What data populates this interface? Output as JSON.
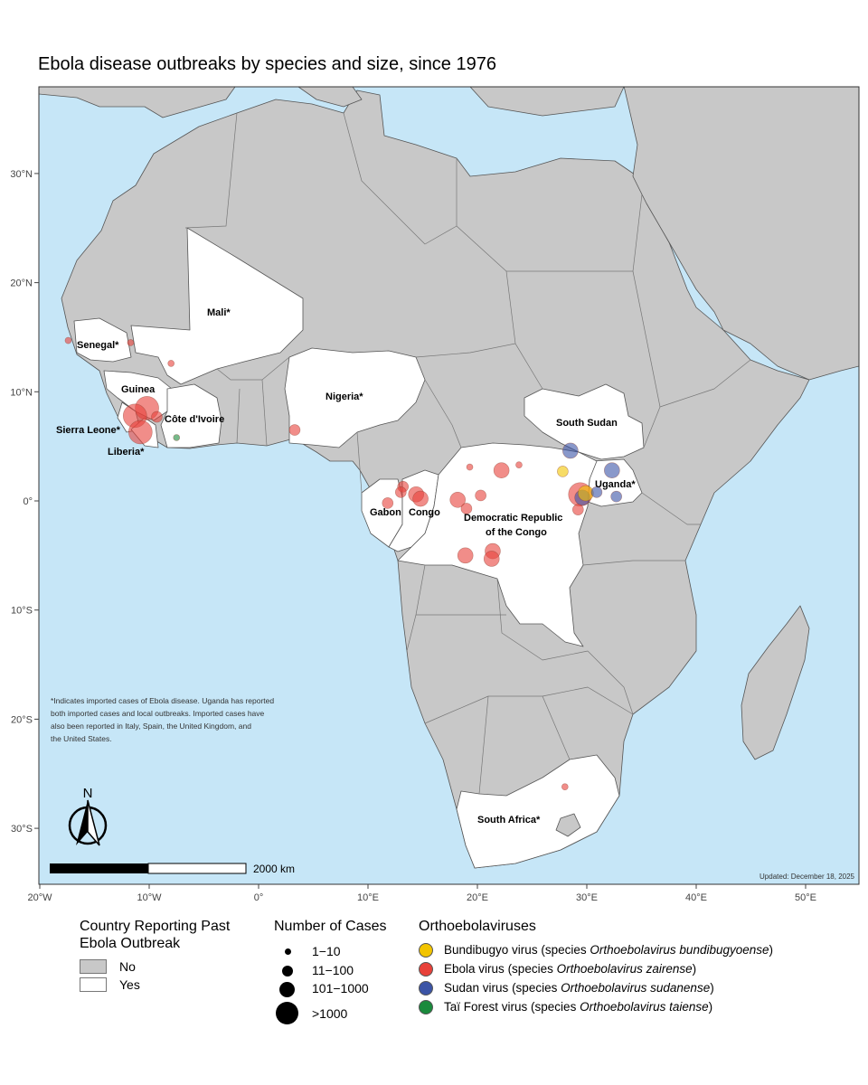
{
  "title": "Ebola disease outbreaks by species and size, since 1976",
  "colors": {
    "ocean": "#c6e6f7",
    "land_no": "#c8c8c8",
    "land_yes": "#ffffff",
    "border": "#555555",
    "bundibugyo": "#f2c400",
    "ebola": "#e8413a",
    "sudan": "#3b54a6",
    "tai_forest": "#1a8a3c"
  },
  "axes": {
    "x_ticks": [
      "20°W",
      "10°W",
      "0°",
      "10°E",
      "20°E",
      "30°E",
      "40°E",
      "50°E"
    ],
    "y_ticks": [
      "30°N",
      "20°N",
      "10°N",
      "0°",
      "10°S",
      "20°S",
      "30°S"
    ]
  },
  "country_labels": [
    {
      "text": "Mali*"
    },
    {
      "text": "Senegal*"
    },
    {
      "text": "Guinea"
    },
    {
      "text": "Sierra Leone*"
    },
    {
      "text": "Côte d'Ivoire"
    },
    {
      "text": "Liberia*"
    },
    {
      "text": "Nigeria*"
    },
    {
      "text": "South Sudan"
    },
    {
      "text": "Uganda*"
    },
    {
      "text": "Gabon"
    },
    {
      "text": "Congo"
    },
    {
      "text": "Democratic Republic"
    },
    {
      "text": "of the Congo"
    },
    {
      "text": "South Africa*"
    }
  ],
  "footnote": [
    "*Indicates imported cases of Ebola disease. Uganda has reported",
    "both imported cases and local outbreaks. Imported cases have",
    "also been reported in Italy, Spain, the United Kingdom, and",
    "the United States."
  ],
  "north_arrow": "N",
  "scale_bar": "2000 km",
  "updated": "Updated: December 18, 2025",
  "outbreaks": [
    {
      "lon": -17.4,
      "lat": 14.7,
      "species": "ebola",
      "size": "1-10"
    },
    {
      "lon": -11.7,
      "lat": 14.5,
      "species": "ebola",
      "size": "1-10"
    },
    {
      "lon": -8.0,
      "lat": 12.6,
      "species": "ebola",
      "size": "1-10"
    },
    {
      "lon": -10.2,
      "lat": 8.5,
      "species": "ebola",
      "size": ">1000"
    },
    {
      "lon": -11.3,
      "lat": 7.8,
      "species": "ebola",
      "size": ">1000"
    },
    {
      "lon": -10.8,
      "lat": 6.3,
      "species": "ebola",
      "size": ">1000"
    },
    {
      "lon": -9.3,
      "lat": 7.7,
      "species": "ebola",
      "size": "11-100"
    },
    {
      "lon": -7.5,
      "lat": 5.8,
      "species": "tai_forest",
      "size": "1-10"
    },
    {
      "lon": 3.3,
      "lat": 6.5,
      "species": "ebola",
      "size": "11-100"
    },
    {
      "lon": 13.2,
      "lat": 1.3,
      "species": "ebola",
      "size": "11-100"
    },
    {
      "lon": 13.0,
      "lat": 0.8,
      "species": "ebola",
      "size": "11-100"
    },
    {
      "lon": 11.8,
      "lat": -0.2,
      "species": "ebola",
      "size": "11-100"
    },
    {
      "lon": 14.4,
      "lat": 0.6,
      "species": "ebola",
      "size": "101-1000"
    },
    {
      "lon": 14.8,
      "lat": 0.2,
      "species": "ebola",
      "size": "101-1000"
    },
    {
      "lon": 18.2,
      "lat": 0.1,
      "species": "ebola",
      "size": "101-1000"
    },
    {
      "lon": 19.3,
      "lat": 3.1,
      "species": "ebola",
      "size": "1-10"
    },
    {
      "lon": 19.0,
      "lat": -0.7,
      "species": "ebola",
      "size": "11-100"
    },
    {
      "lon": 20.3,
      "lat": 0.5,
      "species": "ebola",
      "size": "11-100"
    },
    {
      "lon": 22.2,
      "lat": 2.8,
      "species": "ebola",
      "size": "101-1000"
    },
    {
      "lon": 23.8,
      "lat": 3.3,
      "species": "ebola",
      "size": "1-10"
    },
    {
      "lon": 18.9,
      "lat": -5.0,
      "species": "ebola",
      "size": "101-1000"
    },
    {
      "lon": 21.4,
      "lat": -4.6,
      "species": "ebola",
      "size": "101-1000"
    },
    {
      "lon": 21.3,
      "lat": -5.3,
      "species": "ebola",
      "size": "101-1000"
    },
    {
      "lon": 27.8,
      "lat": 2.7,
      "species": "bundibugyo",
      "size": "11-100"
    },
    {
      "lon": 28.5,
      "lat": 4.6,
      "species": "sudan",
      "size": "101-1000"
    },
    {
      "lon": 29.4,
      "lat": 0.6,
      "species": "ebola",
      "size": ">1000"
    },
    {
      "lon": 29.6,
      "lat": 0.3,
      "species": "sudan",
      "size": "101-1000"
    },
    {
      "lon": 29.9,
      "lat": 0.7,
      "species": "bundibugyo",
      "size": "101-1000"
    },
    {
      "lon": 30.9,
      "lat": 0.8,
      "species": "sudan",
      "size": "11-100"
    },
    {
      "lon": 32.3,
      "lat": 2.8,
      "species": "sudan",
      "size": "101-1000"
    },
    {
      "lon": 32.7,
      "lat": 0.4,
      "species": "sudan",
      "size": "11-100"
    },
    {
      "lon": 29.2,
      "lat": -0.8,
      "species": "ebola",
      "size": "11-100"
    },
    {
      "lon": 28.0,
      "lat": -26.2,
      "species": "ebola",
      "size": "1-10"
    }
  ],
  "legend": {
    "country_title": "Country Reporting Past Ebola Outbreak",
    "country_items": [
      "No",
      "Yes"
    ],
    "cases_title": "Number of Cases",
    "cases_items": [
      "1−10",
      "11−100",
      "101−1000",
      ">1000"
    ],
    "virus_title": "Orthoebolaviruses",
    "virus_items": [
      {
        "name": "Bundibugyo virus",
        "paren": "(species ",
        "species": "Orthoebolavirus bundibugyoense",
        "close": ")",
        "color": "#f2c400"
      },
      {
        "name": "Ebola virus",
        "paren": "(species ",
        "species": "Orthoebolavirus zairense",
        "close": ")",
        "color": "#e8413a"
      },
      {
        "name": "Sudan virus",
        "paren": "(species ",
        "species": "Orthoebolavirus sudanense",
        "close": ")",
        "color": "#3b54a6"
      },
      {
        "name": "Taï Forest virus",
        "paren": "(species ",
        "species": "Orthoebolavirus taiense",
        "close": ")",
        "color": "#1a8a3c"
      }
    ]
  }
}
